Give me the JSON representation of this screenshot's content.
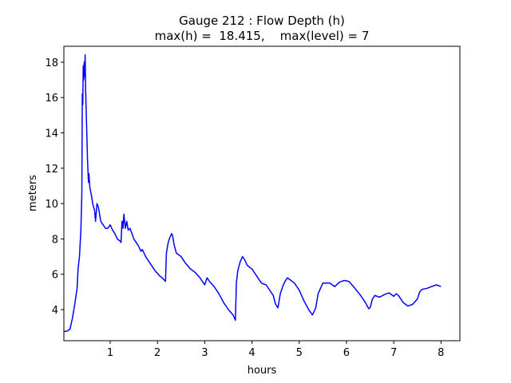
{
  "chart_data": {
    "type": "line",
    "title": "Gauge 212 : Flow Depth (h)",
    "subtitle": "max(h) =  18.415,    max(level) = 7",
    "x_label": "hours",
    "y_label": "meters",
    "xlim": [
      0.02,
      8.4
    ],
    "ylim": [
      2.24,
      18.9
    ],
    "xticks": [
      1,
      2,
      3,
      4,
      5,
      6,
      7,
      8
    ],
    "yticks": [
      4,
      6,
      8,
      10,
      12,
      14,
      16,
      18
    ],
    "grid": false,
    "series": [
      {
        "name": "h",
        "color": "#0000ff",
        "x": [
          0.02,
          0.1,
          0.15,
          0.2,
          0.25,
          0.3,
          0.32,
          0.35,
          0.38,
          0.4,
          0.41,
          0.42,
          0.43,
          0.44,
          0.45,
          0.46,
          0.47,
          0.48,
          0.5,
          0.52,
          0.54,
          0.55,
          0.57,
          0.6,
          0.63,
          0.67,
          0.69,
          0.72,
          0.75,
          0.8,
          0.85,
          0.9,
          0.95,
          1.0,
          1.05,
          1.1,
          1.15,
          1.2,
          1.23,
          1.25,
          1.27,
          1.29,
          1.32,
          1.35,
          1.38,
          1.42,
          1.5,
          1.6,
          1.65,
          1.68,
          1.75,
          1.85,
          1.95,
          2.05,
          2.1,
          2.17,
          2.19,
          2.22,
          2.25,
          2.3,
          2.32,
          2.35,
          2.4,
          2.5,
          2.6,
          2.7,
          2.8,
          2.9,
          3.0,
          3.05,
          3.1,
          3.2,
          3.3,
          3.4,
          3.5,
          3.6,
          3.65,
          3.67,
          3.7,
          3.75,
          3.8,
          3.85,
          3.9,
          4.0,
          4.1,
          4.2,
          4.3,
          4.4,
          4.45,
          4.5,
          4.55,
          4.6,
          4.65,
          4.7,
          4.75,
          4.8,
          4.9,
          5.0,
          5.1,
          5.2,
          5.28,
          5.35,
          5.4,
          5.5,
          5.6,
          5.65,
          5.7,
          5.75,
          5.85,
          5.95,
          6.05,
          6.15,
          6.3,
          6.4,
          6.47,
          6.5,
          6.55,
          6.6,
          6.7,
          6.8,
          6.9,
          7.0,
          7.05,
          7.1,
          7.2,
          7.3,
          7.4,
          7.5,
          7.55,
          7.6,
          7.7,
          7.8,
          7.9,
          8.0
        ],
        "values": [
          2.75,
          2.8,
          2.9,
          3.5,
          4.3,
          5.2,
          6.3,
          7.0,
          8.5,
          10.5,
          16.2,
          15.6,
          17.8,
          17.0,
          18.0,
          17.2,
          18.415,
          16.5,
          14.5,
          12.5,
          11.2,
          11.7,
          10.9,
          10.5,
          10.0,
          9.6,
          9.0,
          10.0,
          9.8,
          9.0,
          8.8,
          8.6,
          8.6,
          8.8,
          8.5,
          8.3,
          8.0,
          7.9,
          7.8,
          9.0,
          8.6,
          9.4,
          8.6,
          9.0,
          8.5,
          8.6,
          8.0,
          7.6,
          7.3,
          7.4,
          7.0,
          6.6,
          6.2,
          5.9,
          5.8,
          5.6,
          7.2,
          7.7,
          8.0,
          8.3,
          8.2,
          7.7,
          7.2,
          7.0,
          6.6,
          6.3,
          6.1,
          5.8,
          5.4,
          5.8,
          5.6,
          5.3,
          4.9,
          4.4,
          4.0,
          3.7,
          3.4,
          5.5,
          6.2,
          6.7,
          7.0,
          6.8,
          6.5,
          6.3,
          5.9,
          5.5,
          5.4,
          5.0,
          4.8,
          4.3,
          4.1,
          4.9,
          5.3,
          5.6,
          5.8,
          5.7,
          5.5,
          5.1,
          4.5,
          4.0,
          3.7,
          4.1,
          4.9,
          5.5,
          5.5,
          5.5,
          5.4,
          5.3,
          5.55,
          5.65,
          5.6,
          5.3,
          4.8,
          4.4,
          4.05,
          4.1,
          4.6,
          4.8,
          4.7,
          4.85,
          4.95,
          4.75,
          4.9,
          4.8,
          4.4,
          4.2,
          4.3,
          4.6,
          5.0,
          5.15,
          5.2,
          5.3,
          5.4,
          5.3
        ]
      }
    ]
  }
}
